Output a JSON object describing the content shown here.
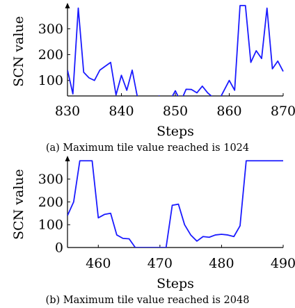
{
  "chart_data": [
    {
      "type": "line",
      "caption": "(a) Maximum tile value reached is 1024",
      "xlabel": "Steps",
      "ylabel": "SCN value",
      "xlim": [
        830,
        870
      ],
      "ylim": [
        40,
        390
      ],
      "xticks": [
        830,
        840,
        850,
        860,
        870
      ],
      "yticks": [
        100,
        200,
        300
      ],
      "grid": false,
      "series": [
        {
          "color": "#1a1aff",
          "x": [
            830,
            831,
            832,
            833,
            834,
            835,
            836,
            837,
            838,
            839,
            840,
            841,
            842,
            843,
            844,
            845,
            846,
            847,
            848,
            849,
            850,
            851,
            852,
            853,
            854,
            855,
            856,
            857,
            858,
            859,
            860,
            861,
            862,
            863,
            864,
            865,
            866,
            867,
            868,
            869,
            870
          ],
          "y": [
            140,
            48,
            380,
            132,
            110,
            100,
            140,
            155,
            170,
            44,
            120,
            62,
            140,
            32,
            26,
            18,
            22,
            40,
            12,
            22,
            60,
            18,
            66,
            65,
            52,
            78,
            52,
            34,
            20,
            60,
            100,
            62,
            390,
            390,
            170,
            215,
            185,
            380,
            145,
            175,
            135
          ]
        }
      ]
    },
    {
      "type": "line",
      "caption": "(b) Maximum tile value reached is 2048",
      "xlabel": "Steps",
      "ylabel": "SCN value",
      "xlim": [
        455,
        490
      ],
      "ylim": [
        0,
        390
      ],
      "xticks": [
        460,
        470,
        480,
        490
      ],
      "yticks": [
        0,
        100,
        200,
        300
      ],
      "grid": false,
      "series": [
        {
          "color": "#1a1aff",
          "x": [
            455,
            456,
            457,
            458,
            459,
            460,
            461,
            462,
            463,
            464,
            465,
            466,
            467,
            468,
            469,
            470,
            471,
            472,
            473,
            474,
            475,
            476,
            477,
            478,
            479,
            480,
            481,
            482,
            483,
            484,
            485,
            486,
            487,
            488,
            489,
            490
          ],
          "y": [
            140,
            200,
            380,
            380,
            380,
            130,
            145,
            150,
            55,
            40,
            38,
            0,
            0,
            0,
            0,
            0,
            0,
            185,
            190,
            100,
            55,
            28,
            48,
            45,
            55,
            58,
            55,
            48,
            95,
            380,
            380,
            380,
            380,
            380,
            380,
            380
          ]
        }
      ]
    }
  ]
}
